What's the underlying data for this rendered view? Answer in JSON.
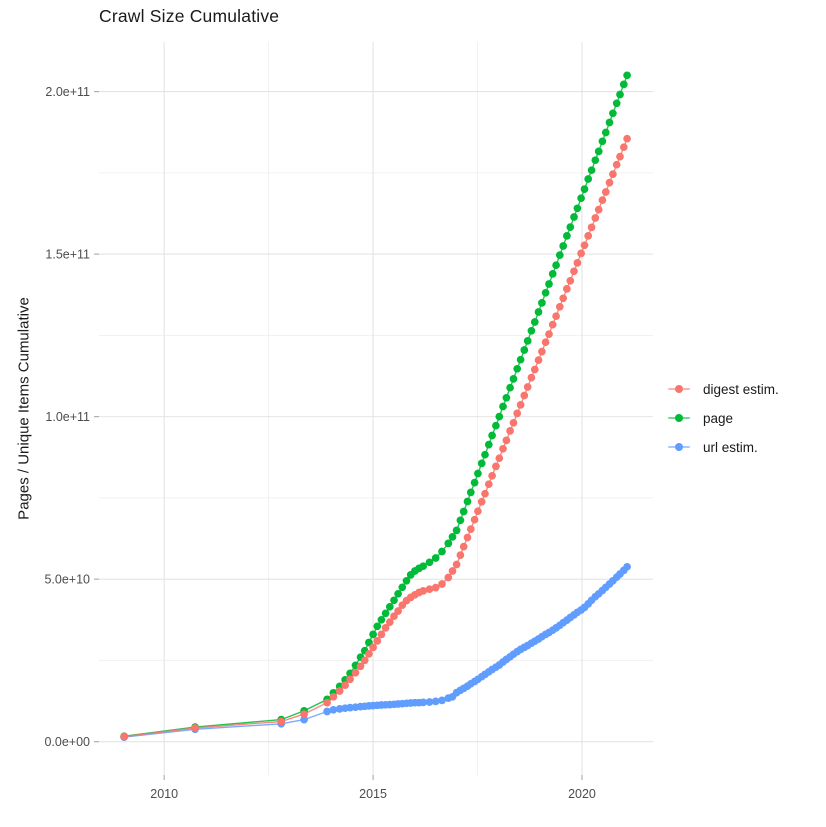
{
  "title": "Crawl Size Cumulative",
  "legend": {
    "items": [
      {
        "label": "digest estim.",
        "color": "#F8766D"
      },
      {
        "label": "page",
        "color": "#00BA38"
      },
      {
        "label": "url estim.",
        "color": "#619CFF"
      }
    ]
  },
  "chart_data": {
    "type": "scatter",
    "style": "points connected by thin lines (ggplot2 default hue palette)",
    "title": "Crawl Size Cumulative",
    "xlabel": "",
    "ylabel": "Pages / Unique Items Cumulative",
    "legend_position": "right-center",
    "grid": "major and minor light-gray gridlines on white panel",
    "xlim": [
      2008.44,
      2021.7
    ],
    "ylim_e9": [
      -10.25,
      215.25
    ],
    "x_ticks": {
      "values": [
        2010,
        2015,
        2020
      ],
      "labels": [
        "2010",
        "2015",
        "2020"
      ]
    },
    "x_minor_ticks": [
      2012.5,
      2017.5
    ],
    "y_ticks": {
      "values_e9": [
        0,
        50,
        100,
        150,
        200
      ],
      "labels": [
        "0.0e+00",
        "5.0e+10",
        "1.0e+11",
        "1.5e+11",
        "2.0e+11"
      ]
    },
    "y_minor_ticks_e9": [
      25,
      75,
      125,
      175
    ],
    "y_unit": "1e9 (billions of pages / unique items)",
    "x": [
      2009.04,
      2010.74,
      2012.8,
      2013.35,
      2013.9,
      2014.05,
      2014.2,
      2014.33,
      2014.45,
      2014.58,
      2014.7,
      2014.8,
      2014.9,
      2015.0,
      2015.1,
      2015.2,
      2015.3,
      2015.4,
      2015.5,
      2015.6,
      2015.7,
      2015.8,
      2015.9,
      2016.0,
      2016.1,
      2016.2,
      2016.35,
      2016.5,
      2016.65,
      2016.8,
      2016.9,
      2017.0,
      2017.09,
      2017.17,
      2017.26,
      2017.34,
      2017.43,
      2017.51,
      2017.6,
      2017.68,
      2017.77,
      2017.85,
      2017.94,
      2018.02,
      2018.11,
      2018.19,
      2018.28,
      2018.36,
      2018.45,
      2018.53,
      2018.62,
      2018.7,
      2018.79,
      2018.87,
      2018.96,
      2019.04,
      2019.13,
      2019.21,
      2019.3,
      2019.38,
      2019.47,
      2019.55,
      2019.64,
      2019.72,
      2019.81,
      2019.89,
      2019.98,
      2020.06,
      2020.15,
      2020.23,
      2020.32,
      2020.4,
      2020.49,
      2020.57,
      2020.66,
      2020.74,
      2020.83,
      2020.91,
      2021.0,
      2021.08
    ],
    "series": [
      {
        "name": "digest estim.",
        "color": "#F8766D",
        "values_e9": [
          1.6,
          4.2,
          6.2,
          8.5,
          12,
          13.8,
          15.6,
          17.4,
          19.2,
          21.2,
          23.2,
          25,
          27,
          29,
          31,
          33,
          35,
          36.8,
          38.6,
          40.2,
          42,
          43.4,
          44.4,
          45.2,
          45.9,
          46.4,
          46.9,
          47.4,
          48.5,
          50.5,
          52.5,
          54.5,
          57.4,
          60,
          62.8,
          65.4,
          68.3,
          70.9,
          73.8,
          76.3,
          79.2,
          81.8,
          84.7,
          87.2,
          90.1,
          92.7,
          95.6,
          98.1,
          101,
          103.6,
          106.5,
          109.1,
          112,
          114.5,
          117.4,
          120,
          122.9,
          125.4,
          128.3,
          130.9,
          133.8,
          136.4,
          139.3,
          141.8,
          144.7,
          147.3,
          150.2,
          152.7,
          155.6,
          158.2,
          161.1,
          163.7,
          166.6,
          169.1,
          172,
          174.6,
          177.5,
          180,
          182.9,
          185.5
        ]
      },
      {
        "name": "page",
        "color": "#00BA38",
        "values_e9": [
          1.7,
          4.5,
          6.8,
          9.5,
          13,
          15,
          17,
          19,
          21,
          23.5,
          26,
          28,
          30.5,
          33,
          35.5,
          37.5,
          39.5,
          41.5,
          43.5,
          45.5,
          47.5,
          49.5,
          51.3,
          52.5,
          53.3,
          54,
          55.2,
          56.5,
          58.5,
          61,
          63,
          65,
          68.1,
          70.8,
          73.9,
          76.7,
          79.7,
          82.5,
          85.6,
          88.3,
          91.4,
          94.2,
          97.2,
          100,
          103.1,
          105.8,
          108.9,
          111.6,
          114.7,
          117.5,
          120.5,
          123.3,
          126.4,
          129.1,
          132.2,
          135,
          138.1,
          140.8,
          143.9,
          146.6,
          149.7,
          152.5,
          155.6,
          158.3,
          161.4,
          164.1,
          167.2,
          170,
          173.1,
          175.8,
          178.9,
          181.6,
          184.7,
          187.4,
          190.5,
          193.3,
          196.4,
          199.1,
          202.2,
          205
        ]
      },
      {
        "name": "url estim.",
        "color": "#619CFF",
        "values_e9": [
          1.4,
          3.8,
          5.5,
          6.8,
          9.3,
          9.8,
          10.1,
          10.3,
          10.5,
          10.6,
          10.8,
          10.9,
          11,
          11.1,
          11.2,
          11.3,
          11.35,
          11.4,
          11.5,
          11.6,
          11.7,
          11.8,
          11.9,
          12,
          12,
          12.1,
          12.2,
          12.4,
          12.7,
          13.4,
          13.8,
          15.1,
          15.8,
          16.4,
          17.1,
          17.8,
          18.5,
          19.2,
          20,
          20.7,
          21.5,
          22.2,
          22.9,
          23.6,
          24.5,
          25.3,
          26.1,
          26.9,
          27.7,
          28.4,
          29,
          29.6,
          30.3,
          30.9,
          31.6,
          32.3,
          33,
          33.6,
          34.3,
          35,
          35.8,
          36.6,
          37.4,
          38.2,
          39,
          39.8,
          40.5,
          41.3,
          42.4,
          43.5,
          44.6,
          45.5,
          46.5,
          47.5,
          48.5,
          49.5,
          50.6,
          51.6,
          52.7,
          53.8
        ]
      }
    ]
  }
}
